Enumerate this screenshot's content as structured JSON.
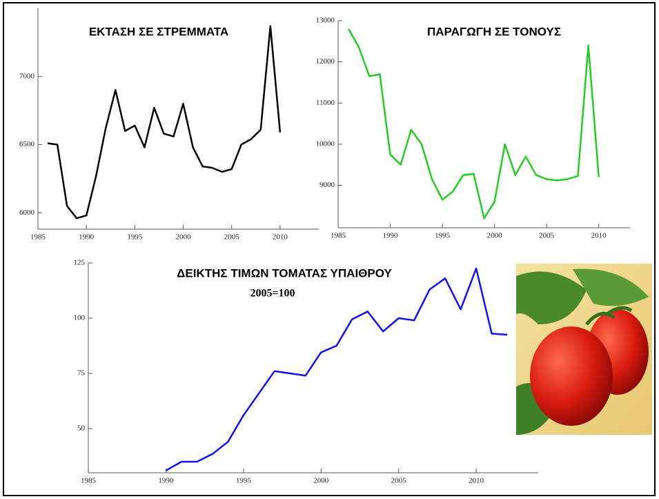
{
  "chart_data": [
    {
      "type": "line",
      "title": "ΕΚΤΑΣΗ ΣΕ ΣΤΡΕΜΜΑΤΑ",
      "color": "#000000",
      "x": [
        1986,
        1987,
        1988,
        1989,
        1990,
        1991,
        1992,
        1993,
        1994,
        1995,
        1996,
        1997,
        1998,
        1999,
        2000,
        2001,
        2002,
        2003,
        2004,
        2005,
        2006,
        2007,
        2008,
        2009,
        2010
      ],
      "values": [
        6510,
        6500,
        6050,
        5960,
        5980,
        6270,
        6620,
        6900,
        6600,
        6640,
        6480,
        6770,
        6580,
        6560,
        6800,
        6480,
        6340,
        6330,
        6300,
        6320,
        6500,
        6540,
        6610,
        7370,
        6590
      ],
      "xlim": [
        1985,
        2014
      ],
      "xticks": [
        1985,
        1990,
        1995,
        2000,
        2005,
        2010
      ],
      "ylim": [
        5880,
        7500
      ],
      "yticks": [
        6000,
        6500,
        7000
      ]
    },
    {
      "type": "line",
      "title": "ΠΑΡΑΓΩΓΗ ΣΕ ΤΟΝΟΥΣ",
      "color": "#22cc22",
      "x": [
        1986,
        1987,
        1988,
        1989,
        1990,
        1991,
        1992,
        1993,
        1994,
        1995,
        1996,
        1997,
        1998,
        1999,
        2000,
        2001,
        2002,
        2003,
        2004,
        2005,
        2006,
        2007,
        2008,
        2009,
        2010
      ],
      "values": [
        12800,
        12350,
        11650,
        11700,
        9750,
        9500,
        10350,
        10000,
        9150,
        8650,
        8850,
        9250,
        9280,
        8200,
        8600,
        10000,
        9250,
        9700,
        9250,
        9150,
        9120,
        9150,
        9230,
        12400,
        9200
      ],
      "xlim": [
        1985,
        2013
      ],
      "xticks": [
        1985,
        1990,
        1995,
        2000,
        2005,
        2010
      ],
      "ylim": [
        7970,
        13000
      ],
      "yticks": [
        9000,
        10000,
        11000,
        12000,
        13000
      ]
    },
    {
      "type": "line",
      "title": "ΔΕΙΚΤΗΣ ΤΙΜΩΝ ΤΟΜΑΤΑΣ ΥΠΑΙΘΡΟΥ",
      "subtitle": "2005=100",
      "color": "#1010ee",
      "x": [
        1990,
        1991,
        1992,
        1993,
        1994,
        1995,
        1996,
        1997,
        1998,
        1999,
        2000,
        2001,
        2002,
        2003,
        2004,
        2005,
        2006,
        2007,
        2008,
        2009,
        2010,
        2011,
        2012
      ],
      "values": [
        31,
        35,
        35,
        38.5,
        44,
        56,
        66,
        76,
        75,
        74,
        84.5,
        87.5,
        99.5,
        103,
        94,
        100,
        99,
        113,
        118,
        104,
        122.5,
        93,
        92.5
      ],
      "xlim": [
        1985,
        2014
      ],
      "xticks": [
        1985,
        1990,
        1995,
        2000,
        2005,
        2010
      ],
      "ylim": [
        30,
        125
      ],
      "yticks": [
        50,
        75,
        100,
        125
      ]
    }
  ]
}
